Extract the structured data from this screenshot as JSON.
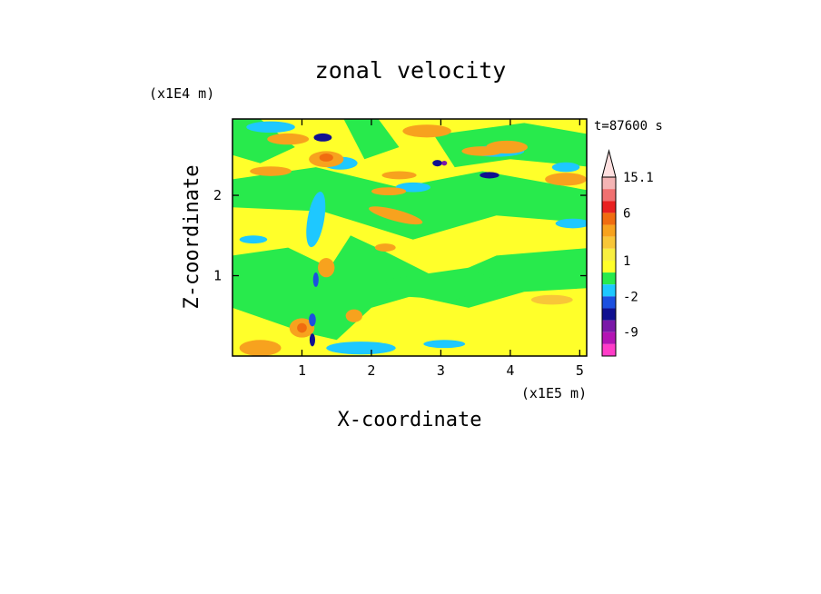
{
  "chart_data": {
    "type": "heatmap",
    "title": "zonal velocity",
    "xlabel": "X-coordinate",
    "ylabel": "Z-coordinate",
    "x_scale_note": "(x1E5 m)",
    "y_scale_note": "(x1E4 m)",
    "time_label": "t=87600 s",
    "xlim": [
      0,
      5.1
    ],
    "ylim": [
      0,
      2.95
    ],
    "x_ticks": [
      1,
      2,
      3,
      4,
      5
    ],
    "x_tick_labels": [
      "1",
      "2",
      "3",
      "4",
      "5"
    ],
    "y_ticks": [
      1,
      2
    ],
    "y_tick_labels": [
      "1",
      "2"
    ],
    "colorbar": {
      "labels": [
        {
          "text": "15.1",
          "value": 15.1
        },
        {
          "text": "6",
          "value": 6
        },
        {
          "text": "1",
          "value": 1
        },
        {
          "text": "-2",
          "value": -2
        },
        {
          "text": "-9",
          "value": -9
        }
      ],
      "levels": [
        {
          "min": 15.1,
          "max": 18,
          "color": "#ffe0e0"
        },
        {
          "min": 12.1,
          "max": 15.1,
          "color": "#f4b4b4"
        },
        {
          "min": 9.1,
          "max": 12.1,
          "color": "#f07070"
        },
        {
          "min": 6,
          "max": 9.1,
          "color": "#e82020"
        },
        {
          "min": 3.5,
          "max": 6,
          "color": "#f06c10"
        },
        {
          "min": 2,
          "max": 3.5,
          "color": "#f7a21e"
        },
        {
          "min": 1.5,
          "max": 2,
          "color": "#f8c638"
        },
        {
          "min": 1,
          "max": 1.5,
          "color": "#f8ee40"
        },
        {
          "min": 0,
          "max": 1,
          "color": "#ffff2a"
        },
        {
          "min": -1,
          "max": 0,
          "color": "#28ea4c"
        },
        {
          "min": -2,
          "max": -1,
          "color": "#1ec8ff"
        },
        {
          "min": -4,
          "max": -2,
          "color": "#1c50e0"
        },
        {
          "min": -6.5,
          "max": -4,
          "color": "#101090"
        },
        {
          "min": -9,
          "max": -6.5,
          "color": "#7a18a8"
        },
        {
          "min": -11,
          "max": -9,
          "color": "#b414b4"
        },
        {
          "min": -14,
          "max": -11,
          "color": "#ff3cc8"
        }
      ]
    }
  }
}
